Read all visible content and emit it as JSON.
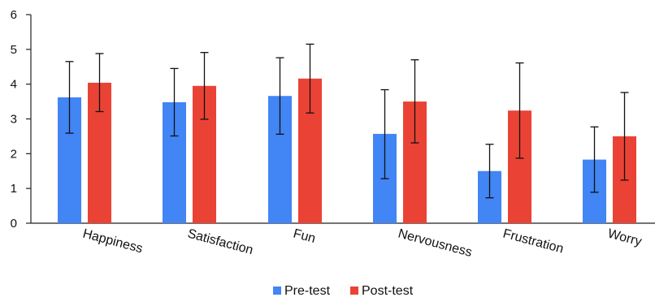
{
  "chart_data": {
    "type": "bar",
    "title": "",
    "xlabel": "",
    "ylabel": "",
    "ylim": [
      0,
      6
    ],
    "yticks": [
      0,
      1,
      2,
      3,
      4,
      5,
      6
    ],
    "grid": false,
    "legend_position": "bottom",
    "categories": [
      "Happiness",
      "Satisfaction",
      "Fun",
      "Nervousness",
      "Frustration",
      "Worry"
    ],
    "series": [
      {
        "name": "Pre-test",
        "color": "#4285f4",
        "values": [
          3.62,
          3.48,
          3.66,
          2.57,
          1.5,
          1.83
        ],
        "error_low": [
          2.59,
          2.51,
          2.56,
          1.28,
          0.73,
          0.89
        ],
        "error_high": [
          4.65,
          4.45,
          4.76,
          3.84,
          2.27,
          2.77
        ]
      },
      {
        "name": "Post-test",
        "color": "#ea4335",
        "values": [
          4.04,
          3.95,
          4.16,
          3.5,
          3.24,
          2.5
        ],
        "error_low": [
          3.21,
          2.99,
          3.17,
          2.31,
          1.87,
          1.24
        ],
        "error_high": [
          4.88,
          4.91,
          5.15,
          4.7,
          4.61,
          3.76
        ]
      }
    ]
  }
}
